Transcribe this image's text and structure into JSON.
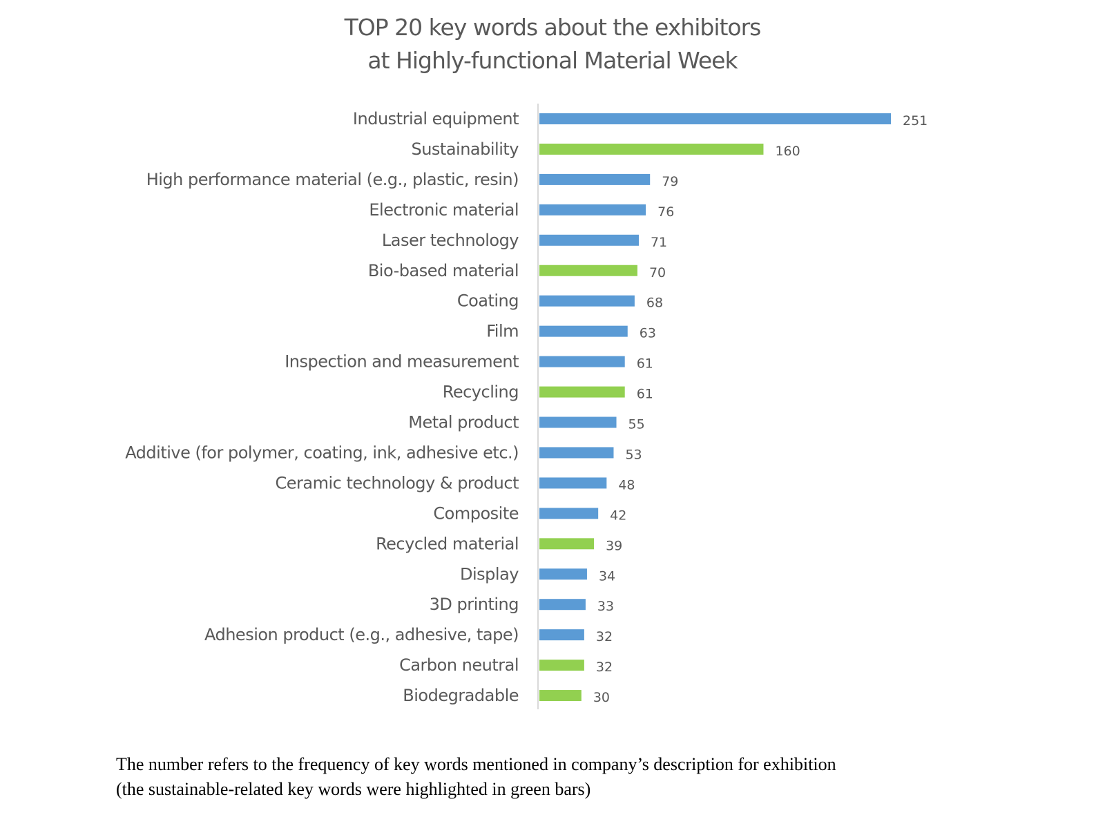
{
  "chart_data": {
    "type": "bar",
    "orientation": "horizontal",
    "title": [
      "TOP 20 key words about the exhibitors",
      "at Highly-functional Material Week"
    ],
    "xlabel": "",
    "ylabel": "",
    "grid": false,
    "xlim": [
      0,
      251
    ],
    "categories": [
      "Industrial equipment",
      "Sustainability",
      "High performance material (e.g., plastic, resin)",
      "Electronic material",
      "Laser technology",
      "Bio-based material",
      "Coating",
      "Film",
      "Inspection and measurement",
      "Recycling",
      "Metal product",
      "Additive (for polymer, coating, ink, adhesive etc.)",
      "Ceramic technology & product",
      "Composite",
      "Recycled material",
      "Display",
      "3D printing",
      "Adhesion product (e.g., adhesive, tape)",
      "Carbon neutral",
      "Biodegradable"
    ],
    "values": [
      251,
      160,
      79,
      76,
      71,
      70,
      68,
      63,
      61,
      61,
      55,
      53,
      48,
      42,
      39,
      34,
      33,
      32,
      32,
      30
    ],
    "sustainable": [
      false,
      true,
      false,
      false,
      false,
      true,
      false,
      false,
      false,
      true,
      false,
      false,
      false,
      false,
      true,
      false,
      false,
      false,
      true,
      true
    ],
    "colors": {
      "default": "#5B9BD5",
      "sustainable": "#92D050",
      "text": "#595959",
      "axis": "#D9D9D9"
    }
  },
  "caption": {
    "line1": "The number refers to the frequency of key words mentioned in company’s description for exhibition",
    "line2": "(the sustainable-related key words were highlighted in green bars)"
  }
}
